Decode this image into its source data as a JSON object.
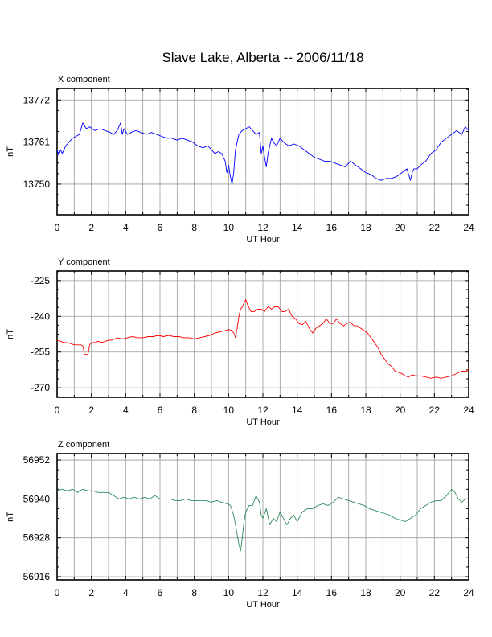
{
  "title": "Slave Lake, Alberta -- 2006/11/18",
  "chart_data": [
    {
      "type": "line",
      "title": "X component",
      "xlabel": "UT Hour",
      "ylabel": "nT",
      "xlim": [
        0,
        24
      ],
      "ylim": [
        13742,
        13775
      ],
      "xticks": [
        0,
        2,
        4,
        6,
        8,
        10,
        12,
        14,
        16,
        18,
        20,
        22,
        24
      ],
      "yticks": [
        13750,
        13761,
        13772
      ],
      "grid": true,
      "color": "#0000ff",
      "series": [
        {
          "x": [
            0,
            0.1,
            0.2,
            0.3,
            0.5,
            0.7,
            0.9,
            1.1,
            1.3,
            1.5,
            1.7,
            1.9,
            2.2,
            2.5,
            2.8,
            3.1,
            3.3,
            3.5,
            3.7,
            3.8,
            3.9,
            4.1,
            4.3,
            4.6,
            4.9,
            5.2,
            5.5,
            5.8,
            6.1,
            6.4,
            6.7,
            7.0,
            7.3,
            7.6,
            7.9,
            8.2,
            8.5,
            8.8,
            9.0,
            9.2,
            9.4,
            9.6,
            9.8,
            9.9,
            10.0,
            10.1,
            10.2,
            10.3,
            10.35,
            10.4,
            10.5,
            10.6,
            10.8,
            11.0,
            11.2,
            11.4,
            11.6,
            11.8,
            11.9,
            12.0,
            12.1,
            12.2,
            12.3,
            12.4,
            12.5,
            12.6,
            12.8,
            13.0,
            13.2,
            13.5,
            13.8,
            14.1,
            14.4,
            14.7,
            15.0,
            15.3,
            15.6,
            15.9,
            16.2,
            16.5,
            16.8,
            17.1,
            17.4,
            17.7,
            18.0,
            18.3,
            18.6,
            18.9,
            19.2,
            19.5,
            19.8,
            20.1,
            20.4,
            20.6,
            20.7,
            20.8,
            21.0,
            21.2,
            21.5,
            21.8,
            22.1,
            22.4,
            22.7,
            23.0,
            23.3,
            23.6,
            23.8,
            24.0
          ],
          "y": [
            13759,
            13757.5,
            13759,
            13758,
            13760,
            13761,
            13762,
            13762.5,
            13763,
            13766,
            13764.5,
            13765,
            13764,
            13764.5,
            13764,
            13763.5,
            13763,
            13764,
            13766,
            13763,
            13764.5,
            13763,
            13763.5,
            13764,
            13763.5,
            13763,
            13763.5,
            13763,
            13762.5,
            13762,
            13762,
            13761.5,
            13762,
            13761.5,
            13761,
            13760,
            13759.5,
            13760,
            13759,
            13758,
            13758.5,
            13758,
            13756,
            13753,
            13755,
            13752,
            13750,
            13753,
            13756,
            13759,
            13761,
            13763,
            13764,
            13764.5,
            13765,
            13764,
            13763,
            13763.5,
            13758,
            13760,
            13757,
            13754.5,
            13758,
            13760,
            13762,
            13761,
            13760,
            13762,
            13761,
            13760,
            13760.5,
            13760,
            13759,
            13758,
            13757,
            13756.5,
            13756,
            13756,
            13755.5,
            13755,
            13754.5,
            13756,
            13755,
            13754,
            13753,
            13752.5,
            13751.5,
            13751,
            13751.5,
            13751.5,
            13752,
            13753,
            13754,
            13751,
            13753,
            13754,
            13754,
            13755,
            13756,
            13758,
            13759,
            13761,
            13762,
            13763,
            13764,
            13763,
            13765,
            13764
          ]
        }
      ]
    },
    {
      "type": "line",
      "title": "Y component",
      "xlabel": "UT Hour",
      "ylabel": "nT",
      "xlim": [
        0,
        24
      ],
      "ylim": [
        -274,
        -221
      ],
      "xticks": [
        0,
        2,
        4,
        6,
        8,
        10,
        12,
        14,
        16,
        18,
        20,
        22,
        24
      ],
      "yticks": [
        -225,
        -240,
        -255,
        -270
      ],
      "grid": true,
      "color": "#ff0000",
      "series": [
        {
          "x": [
            0,
            0.2,
            0.4,
            0.6,
            0.8,
            1.0,
            1.2,
            1.4,
            1.5,
            1.6,
            1.7,
            1.8,
            1.9,
            2.0,
            2.2,
            2.4,
            2.6,
            2.8,
            3.0,
            3.2,
            3.5,
            3.8,
            4.1,
            4.4,
            4.7,
            5.0,
            5.3,
            5.6,
            5.9,
            6.2,
            6.5,
            6.8,
            7.1,
            7.4,
            7.7,
            8.0,
            8.3,
            8.6,
            8.9,
            9.2,
            9.5,
            9.8,
            10.0,
            10.2,
            10.3,
            10.4,
            10.5,
            10.6,
            10.7,
            10.8,
            10.9,
            11.0,
            11.1,
            11.3,
            11.5,
            11.7,
            11.9,
            12.1,
            12.3,
            12.5,
            12.7,
            12.9,
            13.1,
            13.3,
            13.5,
            13.7,
            13.9,
            14.1,
            14.3,
            14.5,
            14.7,
            14.9,
            15.1,
            15.3,
            15.5,
            15.7,
            15.9,
            16.1,
            16.3,
            16.5,
            16.7,
            16.9,
            17.1,
            17.3,
            17.5,
            17.7,
            17.9,
            18.1,
            18.3,
            18.5,
            18.7,
            18.9,
            19.1,
            19.3,
            19.5,
            19.7,
            19.9,
            20.1,
            20.3,
            20.5,
            20.7,
            20.9,
            21.2,
            21.5,
            21.8,
            22.1,
            22.4,
            22.7,
            23.0,
            23.3,
            23.6,
            23.9,
            24.0
          ],
          "y": [
            -250,
            -250.5,
            -251,
            -251,
            -251.5,
            -252,
            -252,
            -252,
            -252.5,
            -256,
            -256,
            -256,
            -252,
            -251,
            -251,
            -250.5,
            -251,
            -250.5,
            -250,
            -250,
            -249,
            -249.5,
            -249,
            -248.5,
            -249,
            -249,
            -248.5,
            -248.5,
            -248,
            -248.5,
            -248,
            -248.5,
            -248.5,
            -249,
            -249,
            -249.5,
            -249,
            -248.5,
            -248,
            -247,
            -246.5,
            -246,
            -245.5,
            -246,
            -247,
            -249,
            -245,
            -240,
            -237,
            -236,
            -234.5,
            -233,
            -235,
            -238,
            -238,
            -237,
            -237,
            -238,
            -236,
            -237,
            -236,
            -236,
            -238,
            -238,
            -237,
            -240,
            -241,
            -243,
            -243.5,
            -242,
            -245,
            -247,
            -245,
            -244,
            -243,
            -241,
            -243,
            -243,
            -241,
            -243,
            -244,
            -243,
            -242.5,
            -244,
            -244,
            -245,
            -246,
            -247,
            -249,
            -251,
            -253,
            -256,
            -258,
            -260,
            -261,
            -263,
            -263.5,
            -264,
            -265,
            -265.5,
            -264.5,
            -265,
            -265,
            -265.5,
            -266,
            -265.5,
            -266,
            -265.5,
            -265,
            -264,
            -263,
            -263,
            -262
          ]
        }
      ]
    },
    {
      "type": "line",
      "title": "Z component",
      "xlabel": "UT Hour",
      "ylabel": "nT",
      "xlim": [
        0,
        24
      ],
      "ylim": [
        56915,
        56954
      ],
      "xticks": [
        0,
        2,
        4,
        6,
        8,
        10,
        12,
        14,
        16,
        18,
        20,
        22,
        24
      ],
      "yticks": [
        56952,
        56940,
        56928,
        56916
      ],
      "grid": true,
      "color": "#2e8b57",
      "series": [
        {
          "x": [
            0,
            0.3,
            0.6,
            0.9,
            1.2,
            1.5,
            1.8,
            2.1,
            2.4,
            2.7,
            3.0,
            3.3,
            3.6,
            3.9,
            4.2,
            4.5,
            4.8,
            5.1,
            5.4,
            5.7,
            6.0,
            6.3,
            6.6,
            6.9,
            7.2,
            7.5,
            7.8,
            8.1,
            8.4,
            8.7,
            9.0,
            9.3,
            9.6,
            9.9,
            10.1,
            10.3,
            10.4,
            10.5,
            10.6,
            10.7,
            10.8,
            10.9,
            11.0,
            11.2,
            11.4,
            11.6,
            11.8,
            11.9,
            12.0,
            12.2,
            12.4,
            12.6,
            12.8,
            13.0,
            13.2,
            13.4,
            13.6,
            13.8,
            14.0,
            14.3,
            14.6,
            14.9,
            15.2,
            15.5,
            15.8,
            16.1,
            16.4,
            16.7,
            17.0,
            17.3,
            17.6,
            17.9,
            18.2,
            18.5,
            18.8,
            19.1,
            19.4,
            19.7,
            20.0,
            20.3,
            20.6,
            20.9,
            21.2,
            21.5,
            21.8,
            22.1,
            22.4,
            22.7,
            23.0,
            23.2,
            23.4,
            23.6,
            23.8,
            24.0
          ],
          "y": [
            56942.5,
            56943,
            56942.5,
            56943,
            56942,
            56943,
            56942.5,
            56942.5,
            56942,
            56942,
            56942,
            56941,
            56940,
            56940.5,
            56940,
            56940.5,
            56940,
            56940.5,
            56940,
            56941,
            56940,
            56940,
            56940,
            56939.5,
            56939.5,
            56940,
            56939.5,
            56939.5,
            56939.5,
            56939.5,
            56939,
            56939.5,
            56939,
            56938.5,
            56938,
            56935,
            56932,
            56929,
            56926,
            56924,
            56928,
            56933,
            56936,
            56938,
            56938,
            56941,
            56939,
            56935,
            56934,
            56937,
            56932,
            56934,
            56933,
            56936,
            56934,
            56932,
            56934,
            56935,
            56933,
            56936,
            56937,
            56937,
            56938,
            56938.5,
            56938,
            56939,
            56940.5,
            56940,
            56939.5,
            56939,
            56938.5,
            56938,
            56937,
            56936.5,
            56936,
            56935.5,
            56935,
            56934,
            56933.5,
            56933,
            56934,
            56935,
            56937,
            56938,
            56939,
            56939.5,
            56939.5,
            56941,
            56943,
            56942,
            56940,
            56939,
            56940,
            56940
          ]
        }
      ]
    }
  ]
}
